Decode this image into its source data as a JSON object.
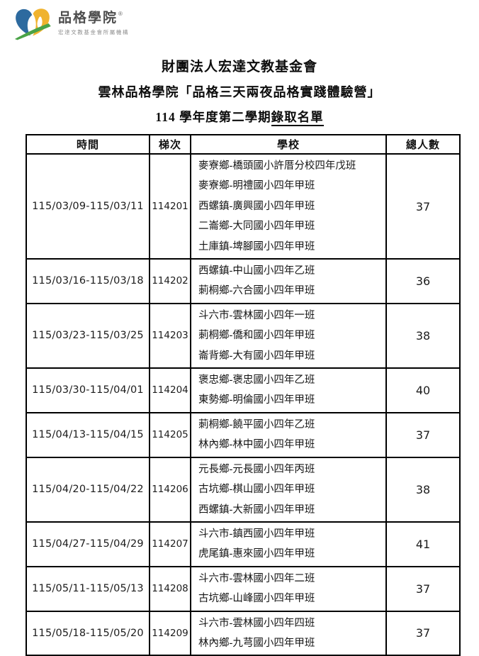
{
  "logo": {
    "brand": "品格學院",
    "registered_mark": "®",
    "tagline": "宏達文教基金會所屬機構",
    "colors": {
      "blue": "#2d6a9f",
      "yellow": "#f0b32e",
      "green": "#4aa347"
    }
  },
  "titles": {
    "line1": "財團法人宏達文教基金會",
    "line2": "雲林品格學院「品格三天兩夜品格實踐體驗營」",
    "line3_prefix": "114 學年度第二學期",
    "line3_underlined": "錄取名單"
  },
  "table": {
    "headers": [
      "時間",
      "梯次",
      "學校",
      "總人數"
    ],
    "rows": [
      {
        "time": "115/03/09-115/03/11",
        "batch": "114201",
        "schools": [
          "麥寮鄉-橋頭國小許厝分校四年戊班",
          "麥寮鄉-明禮國小四年甲班",
          "西螺鎮-廣興國小四年甲班",
          "二崙鄉-大同國小四年甲班",
          "土庫鎮-埤腳國小四年甲班"
        ],
        "total": "37"
      },
      {
        "time": "115/03/16-115/03/18",
        "batch": "114202",
        "schools": [
          "西螺鎮-中山國小四年乙班",
          "莿桐鄉-六合國小四年甲班"
        ],
        "total": "36"
      },
      {
        "time": "115/03/23-115/03/25",
        "batch": "114203",
        "schools": [
          "斗六市-雲林國小四年一班",
          "莿桐鄉-僑和國小四年甲班",
          "崙背鄉-大有國小四年甲班"
        ],
        "total": "38"
      },
      {
        "time": "115/03/30-115/04/01",
        "batch": "114204",
        "schools": [
          "褒忠鄉-褒忠國小四年乙班",
          "東勢鄉-明倫國小四年甲班"
        ],
        "total": "40"
      },
      {
        "time": "115/04/13-115/04/15",
        "batch": "114205",
        "schools": [
          "莿桐鄉-饒平國小四年乙班",
          "林內鄉-林中國小四年甲班"
        ],
        "total": "37"
      },
      {
        "time": "115/04/20-115/04/22",
        "batch": "114206",
        "schools": [
          "元長鄉-元長國小四年丙班",
          "古坑鄉-棋山國小四年甲班",
          "西螺鎮-大新國小四年甲班"
        ],
        "total": "38"
      },
      {
        "time": "115/04/27-115/04/29",
        "batch": "114207",
        "schools": [
          "斗六市-鎮西國小四年甲班",
          "虎尾鎮-惠來國小四年甲班"
        ],
        "total": "41"
      },
      {
        "time": "115/05/11-115/05/13",
        "batch": "114208",
        "schools": [
          "斗六市-雲林國小四年二班",
          "古坑鄉-山峰國小四年甲班"
        ],
        "total": "37"
      },
      {
        "time": "115/05/18-115/05/20",
        "batch": "114209",
        "schools": [
          "斗六市-雲林國小四年四班",
          "林內鄉-九芎國小四年甲班"
        ],
        "total": "37"
      }
    ]
  }
}
